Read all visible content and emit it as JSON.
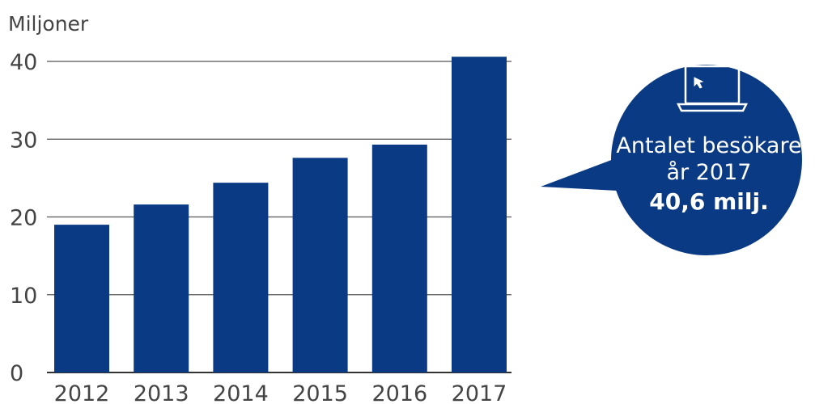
{
  "chart_data": {
    "type": "bar",
    "ylabel": "Miljoner",
    "categories": [
      "2012",
      "2013",
      "2014",
      "2015",
      "2016",
      "2017"
    ],
    "values": [
      19,
      21.6,
      24.4,
      27.6,
      29.3,
      40.6
    ],
    "ylim": [
      0,
      40
    ],
    "yticks": [
      "0",
      "10",
      "20",
      "30",
      "40"
    ],
    "grid": true,
    "bar_color": "#0a3a84"
  },
  "callout": {
    "line1": "Antalet besökare",
    "line2": "år 2017",
    "line3": "40,6 milj.",
    "icon": "laptop-icon",
    "color": "#0a3a84"
  }
}
